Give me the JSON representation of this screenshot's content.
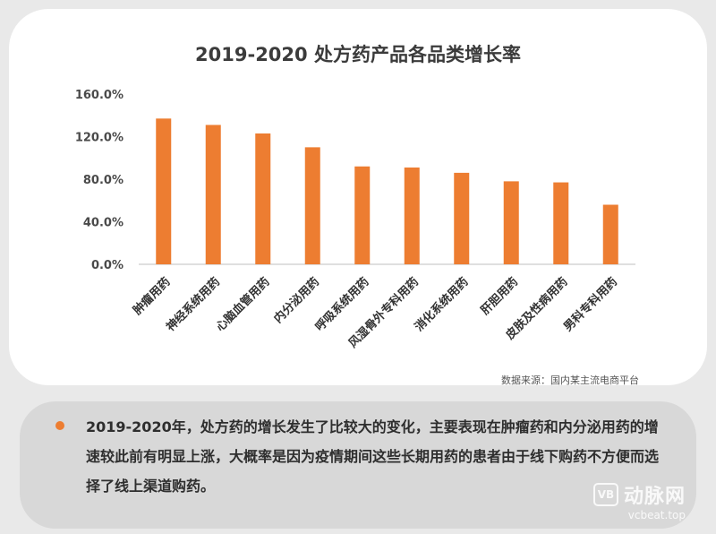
{
  "chart_data": {
    "type": "bar",
    "title": "2019-2020 处方药产品各品类增长率",
    "categories": [
      "肿瘤用药",
      "神经系统用药",
      "心脑血管用药",
      "内分泌用药",
      "呼吸系统用药",
      "风湿骨外专科用药",
      "消化系统用药",
      "肝胆用药",
      "皮肤及性病用药",
      "男科专科用药"
    ],
    "values": [
      137,
      131,
      123,
      110,
      92,
      91,
      86,
      78,
      77,
      56
    ],
    "yticks": [
      "0.0%",
      "40.0%",
      "80.0%",
      "120.0%",
      "160.0%"
    ],
    "ylim": [
      0,
      160
    ],
    "xlabel": "",
    "ylabel": "",
    "grid": false,
    "bar_color": "#ed7d31"
  },
  "source": "数据来源：国内某主流电商平台",
  "summary": "2019-2020年，处方药的增长发生了比较大的变化，主要表现在肿瘤药和内分泌用药的增速较此前有明显上涨，大概率是因为疫情期间这些长期用药的患者由于线下购药不方便而选择了线上渠道购药。",
  "watermark": {
    "logo": "VB",
    "name": "动脉网",
    "url": "vcbeat.top"
  },
  "colors": {
    "bullet": "#ed7d31",
    "panel": "#d8d8d8",
    "background": "#e9e9e9"
  }
}
